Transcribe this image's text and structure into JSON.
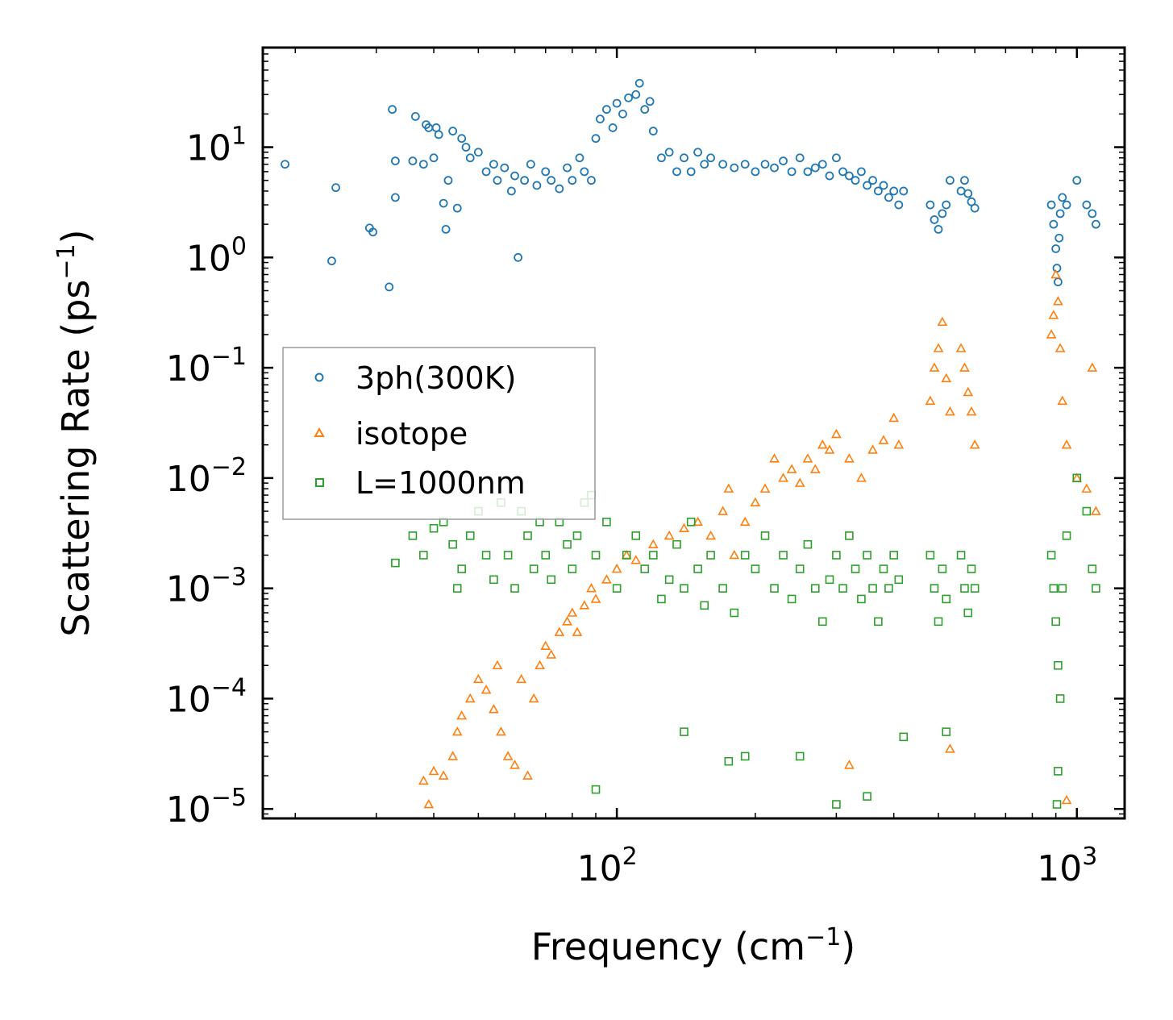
{
  "chart_data": {
    "type": "scatter",
    "xscale": "log",
    "yscale": "log",
    "xlabel": "Frequency (cm",
    "xlabel_sup": "−1",
    "xlabel_end": ")",
    "ylabel": "Scattering Rate (ps",
    "ylabel_sup": "−1",
    "ylabel_end": ")",
    "xlim": [
      17,
      1270
    ],
    "ylim": [
      8.2e-06,
      80
    ],
    "x_ticks": [
      {
        "value": 100,
        "base": "10",
        "exp": "2"
      },
      {
        "value": 1000,
        "base": "10",
        "exp": "3"
      }
    ],
    "y_ticks": [
      {
        "value": 1e-05,
        "base": "10",
        "exp": "−5"
      },
      {
        "value": 0.0001,
        "base": "10",
        "exp": "−4"
      },
      {
        "value": 0.001,
        "base": "10",
        "exp": "−3"
      },
      {
        "value": 0.01,
        "base": "10",
        "exp": "−2"
      },
      {
        "value": 0.1,
        "base": "10",
        "exp": "−1"
      },
      {
        "value": 1,
        "base": "10",
        "exp": "0"
      },
      {
        "value": 10,
        "base": "10",
        "exp": "1"
      }
    ],
    "legend_position": "center-left",
    "series": [
      {
        "name": "3ph(300K)",
        "marker": "circle",
        "color": "#1f77b4",
        "points": [
          [
            19,
            7
          ],
          [
            24,
            0.93
          ],
          [
            24.5,
            4.3
          ],
          [
            29,
            1.85
          ],
          [
            29.5,
            1.7
          ],
          [
            32,
            0.54
          ],
          [
            32.5,
            22
          ],
          [
            33,
            3.5
          ],
          [
            33,
            7.5
          ],
          [
            36,
            7.5
          ],
          [
            36.5,
            19
          ],
          [
            38,
            7
          ],
          [
            38.5,
            16
          ],
          [
            39,
            15
          ],
          [
            40,
            8
          ],
          [
            40.5,
            15
          ],
          [
            41,
            13
          ],
          [
            42,
            3.1
          ],
          [
            42.5,
            1.8
          ],
          [
            43,
            5
          ],
          [
            44,
            14
          ],
          [
            45,
            2.8
          ],
          [
            46,
            12
          ],
          [
            47,
            10
          ],
          [
            48,
            8
          ],
          [
            50,
            9
          ],
          [
            52,
            6
          ],
          [
            54,
            7
          ],
          [
            55,
            5
          ],
          [
            57,
            6.5
          ],
          [
            59,
            4
          ],
          [
            60,
            5.5
          ],
          [
            61,
            1
          ],
          [
            63,
            5
          ],
          [
            65,
            7
          ],
          [
            67,
            4.5
          ],
          [
            70,
            6
          ],
          [
            72,
            5
          ],
          [
            75,
            4.2
          ],
          [
            78,
            6.5
          ],
          [
            80,
            5
          ],
          [
            83,
            8
          ],
          [
            85,
            6
          ],
          [
            88,
            5
          ],
          [
            90,
            12
          ],
          [
            92,
            18
          ],
          [
            95,
            22
          ],
          [
            98,
            15
          ],
          [
            100,
            25
          ],
          [
            103,
            20
          ],
          [
            106,
            28
          ],
          [
            110,
            30
          ],
          [
            112,
            38
          ],
          [
            115,
            22
          ],
          [
            118,
            26
          ],
          [
            120,
            14
          ],
          [
            125,
            8
          ],
          [
            130,
            9
          ],
          [
            135,
            6
          ],
          [
            140,
            8
          ],
          [
            145,
            6
          ],
          [
            150,
            9
          ],
          [
            155,
            7
          ],
          [
            160,
            8
          ],
          [
            170,
            7
          ],
          [
            180,
            6.5
          ],
          [
            190,
            7
          ],
          [
            200,
            6
          ],
          [
            210,
            7
          ],
          [
            220,
            6.5
          ],
          [
            230,
            7.5
          ],
          [
            240,
            6
          ],
          [
            250,
            8
          ],
          [
            260,
            6
          ],
          [
            270,
            6.5
          ],
          [
            280,
            7
          ],
          [
            290,
            5.5
          ],
          [
            300,
            8
          ],
          [
            310,
            6
          ],
          [
            320,
            5.5
          ],
          [
            330,
            5
          ],
          [
            340,
            6
          ],
          [
            350,
            4.5
          ],
          [
            360,
            5
          ],
          [
            370,
            4
          ],
          [
            380,
            4.5
          ],
          [
            390,
            3.5
          ],
          [
            400,
            4
          ],
          [
            410,
            3
          ],
          [
            420,
            4
          ],
          [
            480,
            3
          ],
          [
            490,
            2.2
          ],
          [
            500,
            1.8
          ],
          [
            510,
            2.5
          ],
          [
            520,
            3
          ],
          [
            530,
            5
          ],
          [
            560,
            4
          ],
          [
            570,
            5
          ],
          [
            580,
            3.8
          ],
          [
            590,
            3.2
          ],
          [
            600,
            2.8
          ],
          [
            880,
            3
          ],
          [
            890,
            2
          ],
          [
            900,
            1.2
          ],
          [
            905,
            0.8
          ],
          [
            910,
            0.6
          ],
          [
            915,
            1.5
          ],
          [
            920,
            2.5
          ],
          [
            930,
            3.5
          ],
          [
            950,
            3
          ],
          [
            1000,
            5
          ],
          [
            1050,
            3
          ],
          [
            1080,
            2.5
          ],
          [
            1100,
            2
          ]
        ]
      },
      {
        "name": "isotope",
        "marker": "triangle",
        "color": "#ff7f0e",
        "points": [
          [
            38,
            1.8e-05
          ],
          [
            39,
            1.1e-05
          ],
          [
            40,
            2.2e-05
          ],
          [
            42,
            2e-05
          ],
          [
            44,
            3e-05
          ],
          [
            45,
            5e-05
          ],
          [
            46,
            7e-05
          ],
          [
            48,
            0.0001
          ],
          [
            50,
            0.00015
          ],
          [
            52,
            0.00012
          ],
          [
            54,
            8e-05
          ],
          [
            55,
            0.0002
          ],
          [
            56,
            5e-05
          ],
          [
            58,
            3e-05
          ],
          [
            60,
            2.5e-05
          ],
          [
            62,
            0.00015
          ],
          [
            64,
            2e-05
          ],
          [
            66,
            0.0001
          ],
          [
            68,
            0.0002
          ],
          [
            70,
            0.0003
          ],
          [
            72,
            0.00025
          ],
          [
            75,
            0.0004
          ],
          [
            78,
            0.0005
          ],
          [
            80,
            0.0006
          ],
          [
            82,
            0.0004
          ],
          [
            85,
            0.0007
          ],
          [
            88,
            0.001
          ],
          [
            90,
            0.0008
          ],
          [
            95,
            0.0012
          ],
          [
            100,
            0.0015
          ],
          [
            105,
            0.002
          ],
          [
            110,
            0.0018
          ],
          [
            120,
            0.0025
          ],
          [
            130,
            0.003
          ],
          [
            140,
            0.0035
          ],
          [
            150,
            0.004
          ],
          [
            160,
            0.003
          ],
          [
            170,
            0.005
          ],
          [
            175,
            0.008
          ],
          [
            180,
            0.002
          ],
          [
            190,
            0.004
          ],
          [
            200,
            0.006
          ],
          [
            210,
            0.008
          ],
          [
            220,
            0.015
          ],
          [
            230,
            0.01
          ],
          [
            240,
            0.012
          ],
          [
            250,
            0.009
          ],
          [
            260,
            0.015
          ],
          [
            270,
            0.012
          ],
          [
            280,
            0.02
          ],
          [
            290,
            0.018
          ],
          [
            300,
            0.025
          ],
          [
            320,
            0.015
          ],
          [
            340,
            0.01
          ],
          [
            360,
            0.018
          ],
          [
            380,
            0.022
          ],
          [
            400,
            0.035
          ],
          [
            410,
            0.02
          ],
          [
            480,
            0.05
          ],
          [
            490,
            0.1
          ],
          [
            500,
            0.15
          ],
          [
            510,
            0.26
          ],
          [
            520,
            0.08
          ],
          [
            530,
            0.04
          ],
          [
            560,
            0.15
          ],
          [
            570,
            0.1
          ],
          [
            580,
            0.06
          ],
          [
            590,
            0.04
          ],
          [
            600,
            0.02
          ],
          [
            880,
            0.2
          ],
          [
            890,
            0.3
          ],
          [
            900,
            0.7
          ],
          [
            910,
            0.4
          ],
          [
            920,
            0.15
          ],
          [
            930,
            0.05
          ],
          [
            950,
            0.02
          ],
          [
            1000,
            0.01
          ],
          [
            1050,
            0.008
          ],
          [
            1080,
            0.1
          ],
          [
            1100,
            0.005
          ],
          [
            530,
            3.5e-05
          ],
          [
            320,
            2.5e-05
          ],
          [
            950,
            1.2e-05
          ]
        ]
      },
      {
        "name": "L=1000nm",
        "marker": "square",
        "color": "#2ca02c",
        "points": [
          [
            33,
            0.0017
          ],
          [
            36,
            0.003
          ],
          [
            38,
            0.002
          ],
          [
            40,
            0.0035
          ],
          [
            42,
            0.004
          ],
          [
            44,
            0.0025
          ],
          [
            45,
            0.001
          ],
          [
            46,
            0.0015
          ],
          [
            48,
            0.003
          ],
          [
            50,
            0.005
          ],
          [
            52,
            0.002
          ],
          [
            54,
            0.0012
          ],
          [
            56,
            0.006
          ],
          [
            58,
            0.002
          ],
          [
            60,
            0.001
          ],
          [
            62,
            0.005
          ],
          [
            64,
            0.003
          ],
          [
            66,
            0.0015
          ],
          [
            68,
            0.004
          ],
          [
            70,
            0.002
          ],
          [
            72,
            0.0012
          ],
          [
            75,
            0.004
          ],
          [
            78,
            0.0025
          ],
          [
            80,
            0.0015
          ],
          [
            82,
            0.003
          ],
          [
            85,
            0.006
          ],
          [
            88,
            0.007
          ],
          [
            90,
            0.002
          ],
          [
            95,
            0.004
          ],
          [
            100,
            0.001
          ],
          [
            105,
            0.002
          ],
          [
            110,
            0.003
          ],
          [
            115,
            0.0015
          ],
          [
            120,
            0.002
          ],
          [
            125,
            0.0008
          ],
          [
            130,
            0.0012
          ],
          [
            135,
            0.0025
          ],
          [
            140,
            0.001
          ],
          [
            145,
            0.004
          ],
          [
            150,
            0.0015
          ],
          [
            155,
            0.0007
          ],
          [
            160,
            0.002
          ],
          [
            170,
            0.001
          ],
          [
            180,
            0.0006
          ],
          [
            190,
            0.002
          ],
          [
            200,
            0.0015
          ],
          [
            210,
            0.003
          ],
          [
            220,
            0.001
          ],
          [
            230,
            0.002
          ],
          [
            240,
            0.0008
          ],
          [
            250,
            0.0015
          ],
          [
            260,
            0.0025
          ],
          [
            270,
            0.001
          ],
          [
            280,
            0.0005
          ],
          [
            290,
            0.0012
          ],
          [
            300,
            0.002
          ],
          [
            310,
            0.001
          ],
          [
            320,
            0.003
          ],
          [
            330,
            0.0015
          ],
          [
            340,
            0.0008
          ],
          [
            350,
            0.002
          ],
          [
            360,
            0.001
          ],
          [
            370,
            0.0005
          ],
          [
            380,
            0.0015
          ],
          [
            390,
            0.001
          ],
          [
            400,
            0.002
          ],
          [
            410,
            0.0012
          ],
          [
            480,
            0.002
          ],
          [
            490,
            0.001
          ],
          [
            500,
            0.0005
          ],
          [
            510,
            0.0015
          ],
          [
            520,
            0.0008
          ],
          [
            560,
            0.002
          ],
          [
            570,
            0.001
          ],
          [
            580,
            0.0006
          ],
          [
            590,
            0.0015
          ],
          [
            600,
            0.001
          ],
          [
            880,
            0.002
          ],
          [
            890,
            0.001
          ],
          [
            900,
            0.0005
          ],
          [
            910,
            0.0002
          ],
          [
            920,
            0.0001
          ],
          [
            930,
            0.001
          ],
          [
            950,
            0.003
          ],
          [
            1000,
            0.01
          ],
          [
            1050,
            0.005
          ],
          [
            1080,
            0.0015
          ],
          [
            1100,
            0.001
          ],
          [
            175,
            2.7e-05
          ],
          [
            190,
            3e-05
          ],
          [
            250,
            3e-05
          ],
          [
            350,
            1.3e-05
          ],
          [
            420,
            4.5e-05
          ],
          [
            300,
            1.1e-05
          ],
          [
            90,
            1.5e-05
          ],
          [
            140,
            5e-05
          ],
          [
            910,
            2.2e-05
          ],
          [
            905,
            1.1e-05
          ],
          [
            520,
            5e-05
          ]
        ]
      }
    ]
  }
}
